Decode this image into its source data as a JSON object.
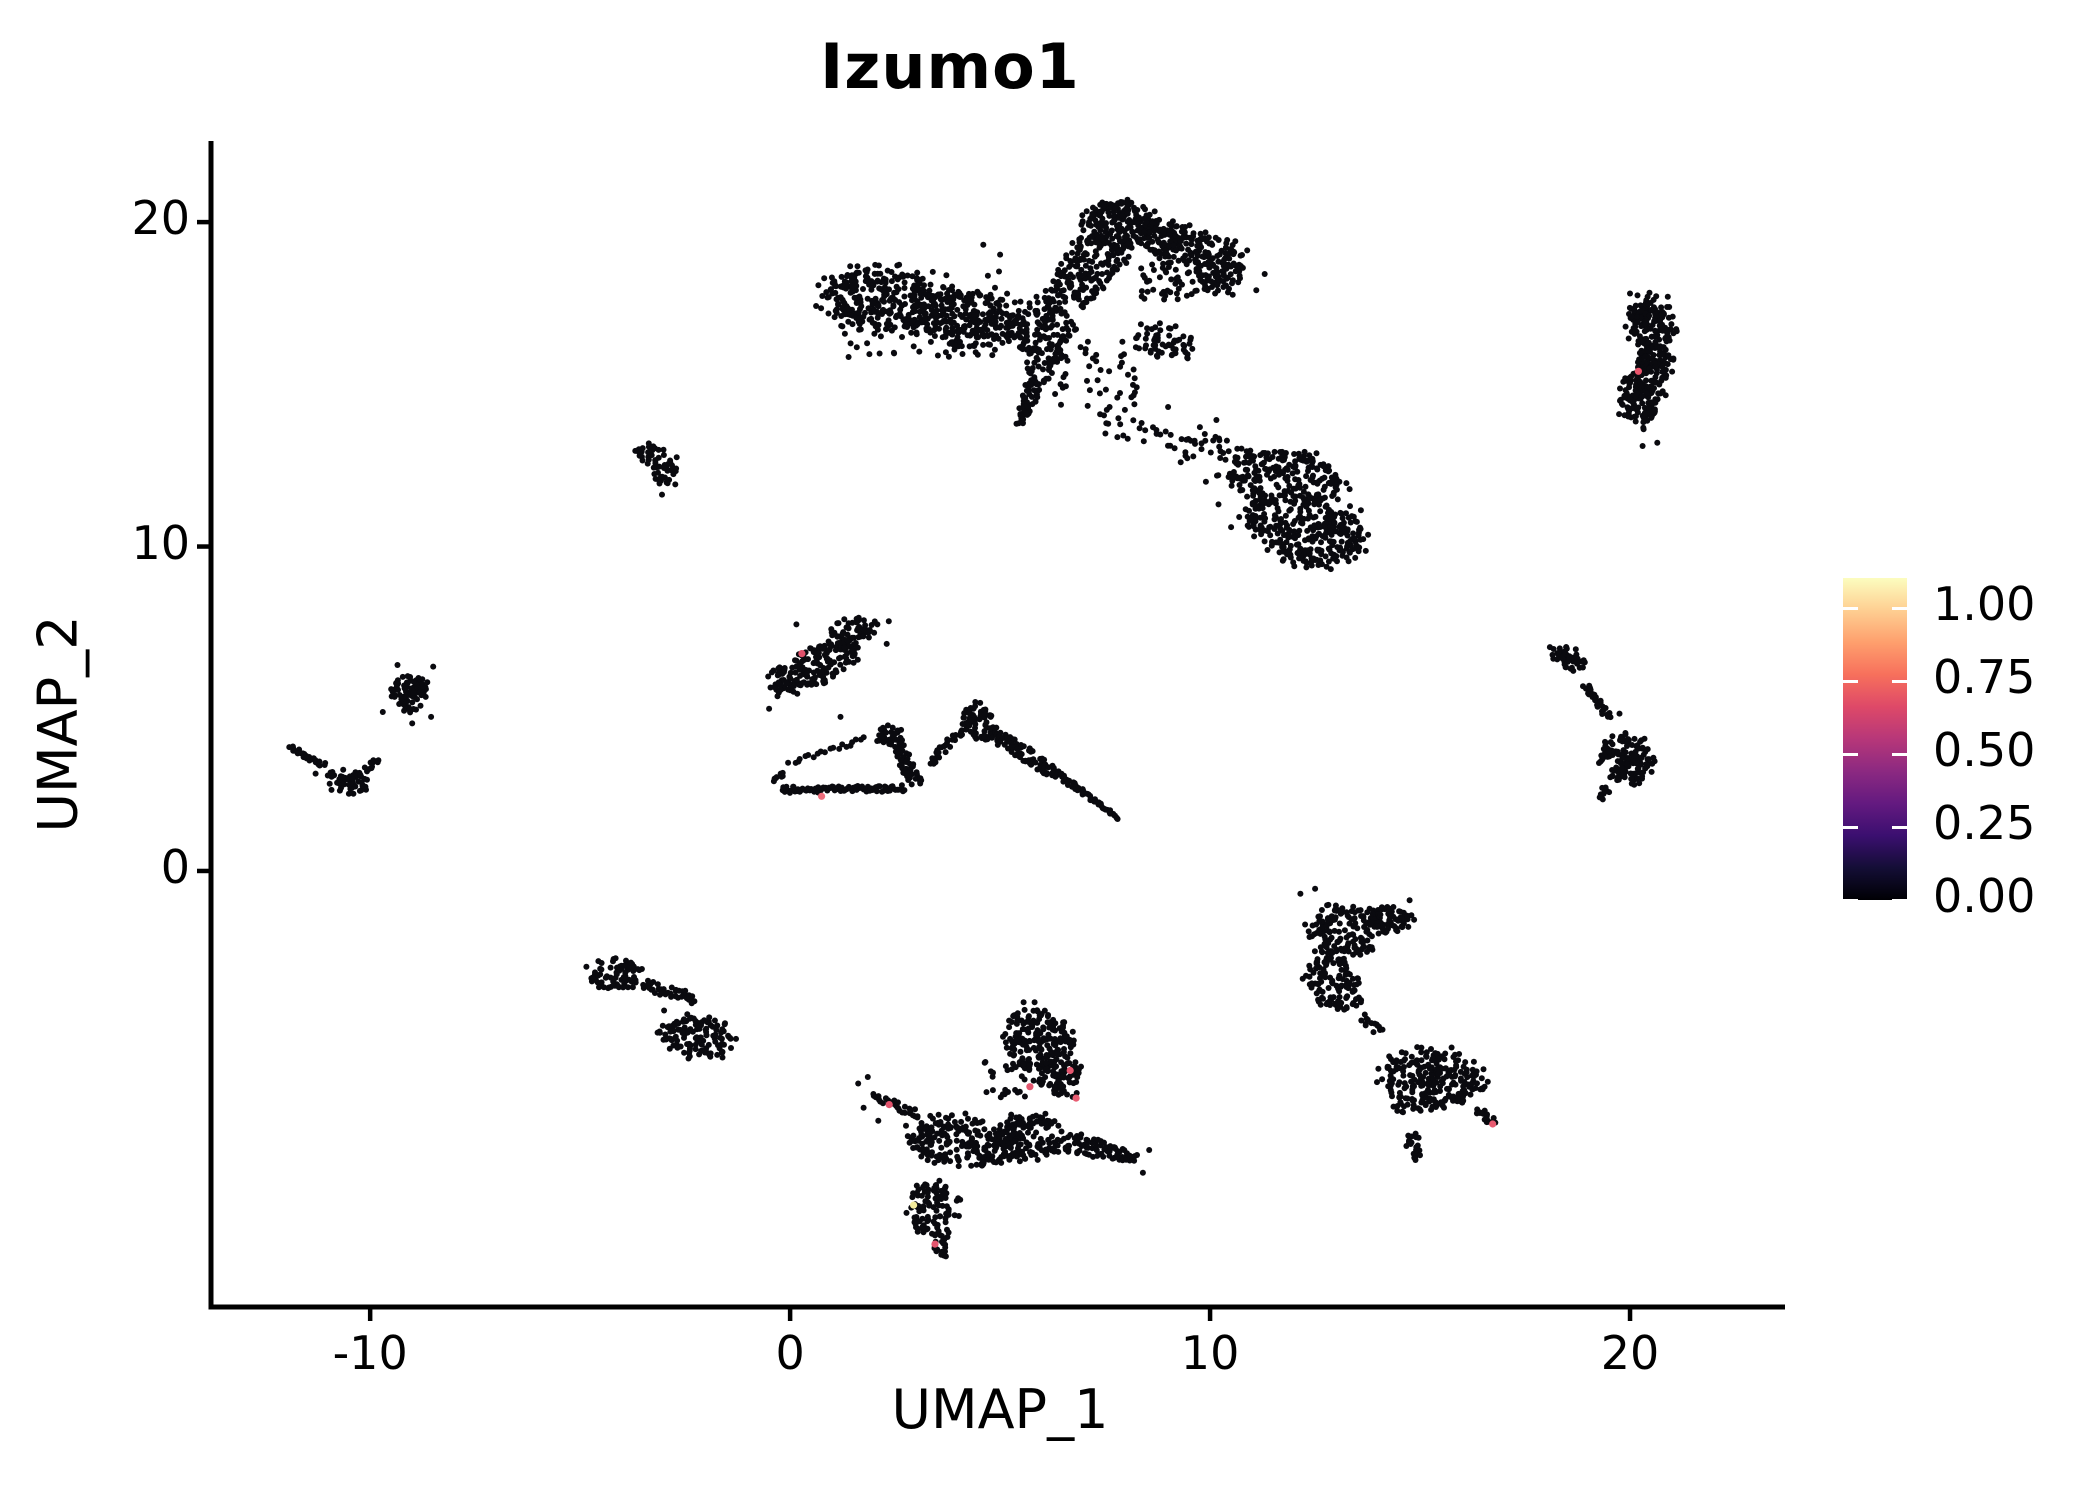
{
  "chart_data": {
    "type": "scatter",
    "title": "Izumo1",
    "xlabel": "UMAP_1",
    "ylabel": "UMAP_2",
    "xlim": [
      -13.79,
      23.69
    ],
    "ylim": [
      -13.44,
      22.5
    ],
    "grid": false,
    "legend_position": "right",
    "point_color": "#0a0a0f",
    "point_radius": 3.0,
    "x_ticks": [
      {
        "v": -10,
        "label": "-10"
      },
      {
        "v": 0,
        "label": "0"
      },
      {
        "v": 10,
        "label": "10"
      },
      {
        "v": 20,
        "label": "20"
      }
    ],
    "y_ticks": [
      {
        "v": 0,
        "label": "0"
      },
      {
        "v": 10,
        "label": "10"
      },
      {
        "v": 20,
        "label": "20"
      }
    ],
    "colorbar": {
      "limit_max": 1.103,
      "colormap": "magma",
      "ticks": [
        {
          "v": 1.0,
          "label": "1.00"
        },
        {
          "v": 0.75,
          "label": "0.75"
        },
        {
          "v": 0.5,
          "label": "0.50"
        },
        {
          "v": 0.25,
          "label": "0.25"
        },
        {
          "v": 0.0,
          "label": "0.00"
        }
      ]
    },
    "clusters": [
      {
        "name": "top-center-large",
        "parts": [
          {
            "t": "e",
            "cx": 2.2,
            "cy": 17.6,
            "rx": 1.35,
            "ry": 0.95,
            "rot": -8,
            "n": 280
          },
          {
            "t": "e",
            "cx": 4.2,
            "cy": 17.0,
            "rx": 1.15,
            "ry": 0.85,
            "rot": -12,
            "n": 220
          },
          {
            "t": "b",
            "x": 1.2,
            "y": 15.8,
            "wd": 4.0,
            "ht": 2.7,
            "n": 90
          },
          {
            "t": "e",
            "cx": 6.0,
            "cy": 16.8,
            "rx": 0.75,
            "ry": 0.9,
            "rot": 0,
            "n": 130
          },
          {
            "t": "tp",
            "x1": 6.55,
            "y1": 17.6,
            "x2": 7.5,
            "y2": 19.3,
            "w1": 0.55,
            "w2": 0.75,
            "n": 150
          },
          {
            "t": "e",
            "cx": 7.85,
            "cy": 19.9,
            "rx": 0.8,
            "ry": 0.75,
            "rot": 0,
            "n": 210
          },
          {
            "t": "e",
            "cx": 9.2,
            "cy": 19.35,
            "rx": 0.8,
            "ry": 0.55,
            "rot": -15,
            "n": 130
          },
          {
            "t": "e",
            "cx": 10.25,
            "cy": 18.7,
            "rx": 0.6,
            "ry": 0.7,
            "rot": 0,
            "n": 90
          },
          {
            "t": "b",
            "x": 8.3,
            "y": 17.6,
            "wd": 2.3,
            "ht": 1.3,
            "n": 70
          },
          {
            "t": "e",
            "cx": 8.9,
            "cy": 16.3,
            "rx": 0.7,
            "ry": 0.5,
            "rot": -20,
            "n": 60
          },
          {
            "t": "tp",
            "x1": 6.15,
            "y1": 16.2,
            "x2": 5.45,
            "y2": 13.75,
            "w1": 0.45,
            "w2": 0.07,
            "n": 90
          },
          {
            "t": "b",
            "x": 6.3,
            "y": 14.2,
            "wd": 2.2,
            "ht": 2.2,
            "n": 50
          },
          {
            "t": "l",
            "x1": 7.3,
            "y1": 13.9,
            "x2": 9.7,
            "y2": 12.9,
            "w": 0.35,
            "n": 30
          },
          {
            "t": "p",
            "pts": [
              [
                5.0,
                19.0
              ],
              [
                4.6,
                19.3
              ],
              [
                11.1,
                17.9
              ],
              [
                11.3,
                18.4
              ]
            ]
          }
        ]
      },
      {
        "name": "mid-right-blob",
        "parts": [
          {
            "t": "e",
            "cx": 11.75,
            "cy": 12.1,
            "rx": 1.35,
            "ry": 0.8,
            "rot": -10,
            "n": 230
          },
          {
            "t": "e",
            "cx": 12.55,
            "cy": 10.4,
            "rx": 1.15,
            "ry": 0.95,
            "rot": 0,
            "n": 250
          },
          {
            "t": "e",
            "cx": 11.3,
            "cy": 10.9,
            "rx": 0.5,
            "ry": 0.55,
            "rot": 0,
            "n": 50
          },
          {
            "t": "l",
            "x1": 9.55,
            "y1": 13.5,
            "x2": 10.75,
            "y2": 12.7,
            "w": 0.28,
            "n": 26
          },
          {
            "t": "p",
            "pts": [
              [
                9.0,
                14.3
              ],
              [
                10.15,
                13.9
              ],
              [
                9.3,
                12.6
              ],
              [
                9.9,
                12.0
              ],
              [
                10.2,
                11.3
              ],
              [
                10.5,
                10.6
              ],
              [
                10.9,
                12.2
              ],
              [
                11.2,
                11.8
              ]
            ]
          }
        ]
      },
      {
        "name": "small-left-clump",
        "parts": [
          {
            "t": "e",
            "cx": -3.35,
            "cy": 12.85,
            "rx": 0.3,
            "ry": 0.3,
            "rot": 0,
            "n": 26
          },
          {
            "t": "e",
            "cx": -3.0,
            "cy": 12.3,
            "rx": 0.28,
            "ry": 0.45,
            "rot": 10,
            "n": 34
          },
          {
            "t": "p",
            "pts": [
              [
                -3.6,
                13.0
              ],
              [
                -2.7,
                12.75
              ],
              [
                -3.05,
                11.6
              ]
            ]
          }
        ]
      },
      {
        "name": "far-right-tall",
        "parts": [
          {
            "t": "e",
            "cx": 20.5,
            "cy": 16.8,
            "rx": 0.5,
            "ry": 0.85,
            "rot": 8,
            "n": 150
          },
          {
            "t": "e",
            "cx": 20.25,
            "cy": 14.7,
            "rx": 0.5,
            "ry": 0.95,
            "rot": -8,
            "n": 150
          },
          {
            "t": "e",
            "cx": 20.6,
            "cy": 15.7,
            "rx": 0.4,
            "ry": 0.5,
            "rot": 0,
            "n": 60
          },
          {
            "t": "p",
            "pts": [
              [
                20.9,
                17.7
              ],
              [
                20.0,
                17.8
              ],
              [
                20.3,
                13.1
              ],
              [
                20.65,
                13.2
              ]
            ]
          }
        ]
      },
      {
        "name": "right-hook",
        "parts": [
          {
            "t": "e",
            "cx": 18.55,
            "cy": 6.55,
            "rx": 0.5,
            "ry": 0.28,
            "rot": -30,
            "n": 45
          },
          {
            "t": "l",
            "x1": 18.95,
            "y1": 5.75,
            "x2": 19.5,
            "y2": 4.7,
            "w": 0.1,
            "n": 26
          },
          {
            "t": "e",
            "cx": 19.9,
            "cy": 3.45,
            "rx": 0.6,
            "ry": 0.7,
            "rot": 0,
            "n": 140
          },
          {
            "t": "tp",
            "x1": 19.45,
            "y1": 2.6,
            "x2": 19.3,
            "y2": 2.2,
            "w1": 0.15,
            "w2": 0.05,
            "n": 10
          },
          {
            "t": "p",
            "pts": [
              [
                19.75,
                4.85
              ]
            ]
          }
        ]
      },
      {
        "name": "left-small-blob",
        "parts": [
          {
            "t": "e",
            "cx": -9.05,
            "cy": 5.5,
            "rx": 0.42,
            "ry": 0.55,
            "rot": 0,
            "n": 85
          },
          {
            "t": "p",
            "pts": [
              [
                -8.5,
                6.3
              ],
              [
                -9.35,
                6.35
              ],
              [
                -9.7,
                4.9
              ],
              [
                -8.55,
                4.75
              ],
              [
                -9.0,
                4.55
              ]
            ]
          }
        ]
      },
      {
        "name": "far-left-arc",
        "parts": [
          {
            "t": "l",
            "x1": -11.95,
            "y1": 3.8,
            "x2": -11.05,
            "y2": 3.25,
            "w": 0.09,
            "n": 24
          },
          {
            "t": "e",
            "cx": -10.5,
            "cy": 2.75,
            "rx": 0.45,
            "ry": 0.38,
            "rot": -15,
            "n": 55
          },
          {
            "t": "l",
            "x1": -10.15,
            "y1": 3.1,
            "x2": -9.8,
            "y2": 3.45,
            "w": 0.08,
            "n": 10
          },
          {
            "t": "p",
            "pts": [
              [
                -11.3,
                3.0
              ]
            ]
          }
        ]
      },
      {
        "name": "center-left-diagonal",
        "parts": [
          {
            "t": "e",
            "cx": 0.6,
            "cy": 6.35,
            "rx": 1.2,
            "ry": 0.5,
            "rot": 35,
            "n": 190
          },
          {
            "t": "e",
            "cx": 1.45,
            "cy": 7.4,
            "rx": 0.55,
            "ry": 0.4,
            "rot": 20,
            "n": 55
          },
          {
            "t": "p",
            "pts": [
              [
                2.35,
                7.7
              ],
              [
                2.3,
                7.0
              ],
              [
                1.2,
                4.75
              ],
              [
                0.15,
                7.6
              ],
              [
                -0.5,
                5.0
              ]
            ]
          }
        ]
      },
      {
        "name": "center-mountains",
        "parts": [
          {
            "t": "l",
            "x1": -0.2,
            "y1": 2.5,
            "x2": 2.75,
            "y2": 2.55,
            "w": 0.1,
            "n": 85
          },
          {
            "t": "l",
            "x1": -0.38,
            "y1": 2.75,
            "x2": -0.15,
            "y2": 3.05,
            "w": 0.08,
            "n": 8
          },
          {
            "t": "l",
            "x1": -0.05,
            "y1": 3.3,
            "x2": 1.85,
            "y2": 4.1,
            "w": 0.07,
            "n": 20
          },
          {
            "t": "e",
            "cx": 2.3,
            "cy": 4.25,
            "rx": 0.3,
            "ry": 0.28,
            "rot": 0,
            "n": 30
          },
          {
            "t": "l",
            "x1": 2.5,
            "y1": 4.1,
            "x2": 3.0,
            "y2": 2.65,
            "w": 0.17,
            "n": 55
          },
          {
            "t": "l",
            "x1": 3.3,
            "y1": 3.3,
            "x2": 4.35,
            "y2": 4.75,
            "w": 0.12,
            "n": 40
          },
          {
            "t": "e",
            "cx": 4.5,
            "cy": 4.55,
            "rx": 0.33,
            "ry": 0.55,
            "rot": 10,
            "n": 65
          },
          {
            "t": "l",
            "x1": 4.75,
            "y1": 4.3,
            "x2": 6.35,
            "y2": 3.0,
            "w": 0.2,
            "n": 85
          },
          {
            "t": "tp",
            "x1": 6.35,
            "y1": 3.0,
            "x2": 7.85,
            "y2": 1.6,
            "w1": 0.1,
            "w2": 0.04,
            "n": 50
          }
        ]
      },
      {
        "name": "bottom-left",
        "parts": [
          {
            "t": "e",
            "cx": -4.15,
            "cy": -3.2,
            "rx": 0.6,
            "ry": 0.5,
            "rot": 20,
            "n": 75
          },
          {
            "t": "l",
            "x1": -3.5,
            "y1": -3.5,
            "x2": -2.25,
            "y2": -3.95,
            "w": 0.16,
            "n": 40
          },
          {
            "t": "e",
            "cx": -2.2,
            "cy": -5.15,
            "rx": 0.8,
            "ry": 0.6,
            "rot": -15,
            "n": 130
          },
          {
            "t": "p",
            "pts": [
              [
                -4.85,
                -2.95
              ],
              [
                -3.0,
                -4.3
              ],
              [
                -2.7,
                -4.65
              ],
              [
                -2.85,
                -4.95
              ]
            ]
          }
        ]
      },
      {
        "name": "bottom-center-large",
        "parts": [
          {
            "t": "e",
            "cx": 5.85,
            "cy": -5.2,
            "rx": 0.75,
            "ry": 1.0,
            "rot": 10,
            "n": 190
          },
          {
            "t": "e",
            "cx": 6.45,
            "cy": -6.4,
            "rx": 0.5,
            "ry": 0.55,
            "rot": 0,
            "n": 70
          },
          {
            "t": "b",
            "x": 4.6,
            "y": -7.0,
            "wd": 1.3,
            "ht": 1.2,
            "n": 28
          },
          {
            "t": "l",
            "x1": 1.95,
            "y1": -6.9,
            "x2": 3.1,
            "y2": -7.55,
            "w": 0.14,
            "n": 30
          },
          {
            "t": "e",
            "cx": 4.2,
            "cy": -8.35,
            "rx": 1.35,
            "ry": 0.75,
            "rot": -8,
            "n": 240
          },
          {
            "t": "e",
            "cx": 5.7,
            "cy": -8.15,
            "rx": 0.8,
            "ry": 0.65,
            "rot": 0,
            "n": 120
          },
          {
            "t": "tp",
            "x1": 6.6,
            "y1": -8.35,
            "x2": 8.25,
            "y2": -8.85,
            "w1": 0.38,
            "w2": 0.12,
            "n": 80
          },
          {
            "t": "e",
            "cx": 3.4,
            "cy": -10.4,
            "rx": 0.55,
            "ry": 0.8,
            "rot": -5,
            "n": 100
          },
          {
            "t": "tp",
            "x1": 3.5,
            "y1": -11.1,
            "x2": 3.65,
            "y2": -11.9,
            "w1": 0.3,
            "w2": 0.08,
            "n": 25
          },
          {
            "t": "p",
            "pts": [
              [
                1.62,
                -6.55
              ],
              [
                1.85,
                -6.35
              ],
              [
                2.1,
                -7.7
              ],
              [
                1.75,
                -7.3
              ],
              [
                8.55,
                -8.6
              ],
              [
                8.4,
                -9.3
              ]
            ]
          }
        ]
      },
      {
        "name": "bottom-right-s",
        "parts": [
          {
            "t": "e",
            "cx": 13.25,
            "cy": -1.85,
            "rx": 0.85,
            "ry": 0.8,
            "rot": 0,
            "n": 150
          },
          {
            "t": "e",
            "cx": 14.25,
            "cy": -1.5,
            "rx": 0.5,
            "ry": 0.45,
            "rot": 0,
            "n": 55
          },
          {
            "t": "e",
            "cx": 12.95,
            "cy": -3.5,
            "rx": 0.6,
            "ry": 0.85,
            "rot": 15,
            "n": 120
          },
          {
            "t": "l",
            "x1": 13.6,
            "y1": -4.5,
            "x2": 14.05,
            "y2": -5.0,
            "w": 0.12,
            "n": 14
          },
          {
            "t": "e",
            "cx": 15.25,
            "cy": -6.5,
            "rx": 1.15,
            "ry": 0.95,
            "rot": -10,
            "n": 260
          },
          {
            "t": "tp",
            "x1": 16.3,
            "y1": -7.4,
            "x2": 16.8,
            "y2": -7.75,
            "w1": 0.2,
            "w2": 0.08,
            "n": 18
          },
          {
            "t": "tp",
            "x1": 14.75,
            "y1": -8.1,
            "x2": 14.95,
            "y2": -8.9,
            "w1": 0.25,
            "w2": 0.08,
            "n": 22
          },
          {
            "t": "p",
            "pts": [
              [
                12.15,
                -0.7
              ],
              [
                12.5,
                -0.55
              ],
              [
                14.75,
                -0.9
              ]
            ]
          }
        ]
      }
    ],
    "highlight_points": [
      {
        "x": 0.28,
        "y": 6.7,
        "color": "#e0516b"
      },
      {
        "x": 0.75,
        "y": 2.3,
        "color": "#ee6d7c"
      },
      {
        "x": 6.67,
        "y": -6.15,
        "color": "#e4566f"
      },
      {
        "x": 5.71,
        "y": -6.65,
        "color": "#e4566f"
      },
      {
        "x": 6.81,
        "y": -7.0,
        "color": "#e85d72"
      },
      {
        "x": 2.36,
        "y": -7.2,
        "color": "#e2536d"
      },
      {
        "x": 3.45,
        "y": -11.5,
        "color": "#e4566f"
      },
      {
        "x": 2.94,
        "y": -10.3,
        "color": "#f3eb9b"
      },
      {
        "x": 20.2,
        "y": 15.4,
        "color": "#e9556c"
      },
      {
        "x": 16.73,
        "y": -7.8,
        "color": "#e85a70"
      }
    ]
  }
}
